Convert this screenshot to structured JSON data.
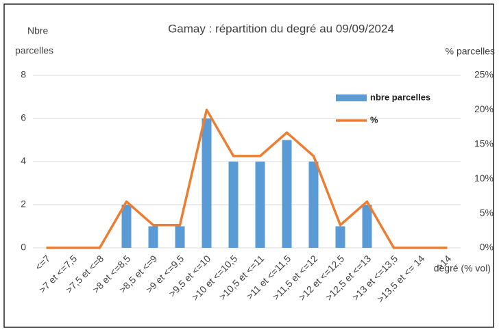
{
  "chart_data": {
    "type": "bar_line",
    "title": "Gamay : répartition du degré au 09/09/2024",
    "ylabel": [
      "Nbre",
      "parcelles"
    ],
    "y2label": "% parcelles",
    "xlabel": "degré (% vol)",
    "categories": [
      "<=7",
      ">7 et <=7,5",
      ">7,5 et <=8",
      ">8 et <=8,5",
      ">8,5 et <=9",
      ">9 et <=9,5",
      ">9,5 et <=10",
      ">10 et <=10,5",
      ">10,5 et <=11",
      ">11 et <=11,5",
      ">11,5 et <=12",
      ">12 et <=12,5",
      ">12,5 et <=13",
      ">13 et <=13,5",
      ">13,5 et <= 14",
      ">14"
    ],
    "series": [
      {
        "name": "nbre parcelles",
        "color": "#5b9bd5",
        "values": [
          0,
          0,
          0,
          2,
          1,
          1,
          6,
          4,
          4,
          5,
          4,
          1,
          2,
          0,
          0,
          0
        ]
      },
      {
        "name": "%",
        "color": "#ed7d31",
        "axis": "y2",
        "values": [
          0,
          0,
          0,
          6.7,
          3.3,
          3.3,
          20,
          13.3,
          13.3,
          16.7,
          13.3,
          3.3,
          6.7,
          0,
          0,
          0
        ]
      }
    ],
    "ylim": [
      0,
      8
    ],
    "yticks": [
      0,
      2,
      4,
      6,
      8
    ],
    "y2lim": [
      0,
      25
    ],
    "y2ticks": [
      {
        "value": 0,
        "label": "0%"
      },
      {
        "value": 5,
        "label": "5%"
      },
      {
        "value": 10,
        "label": "10%"
      },
      {
        "value": 15,
        "label": "15%"
      },
      {
        "value": 20,
        "label": "20%"
      },
      {
        "value": 25,
        "label": "25%"
      }
    ],
    "grid": true
  }
}
